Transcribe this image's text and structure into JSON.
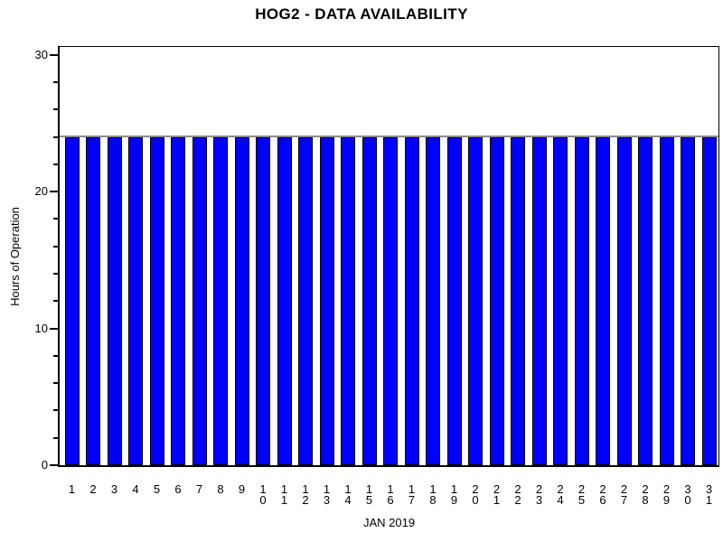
{
  "chart_data": {
    "type": "bar",
    "title": "HOG2 - DATA AVAILABILITY",
    "xlabel": "JAN 2019",
    "ylabel": "Hours of Operation",
    "categories": [
      "1",
      "2",
      "3",
      "4",
      "5",
      "6",
      "7",
      "8",
      "9",
      "10",
      "11",
      "12",
      "13",
      "14",
      "15",
      "16",
      "17",
      "18",
      "19",
      "20",
      "21",
      "22",
      "23",
      "24",
      "25",
      "26",
      "27",
      "28",
      "29",
      "30",
      "31"
    ],
    "values": [
      24,
      24,
      24,
      24,
      24,
      24,
      24,
      24,
      24,
      24,
      24,
      24,
      24,
      24,
      24,
      24,
      24,
      24,
      24,
      24,
      24,
      24,
      24,
      24,
      24,
      24,
      24,
      24,
      24,
      24,
      24
    ],
    "ylim": [
      0,
      30
    ],
    "yticks_major": [
      0,
      10,
      20,
      30
    ],
    "ytick_minor_step": 2,
    "grid": "off",
    "legend": "none",
    "reference_line": {
      "value": 24,
      "color": "#8c8c8c"
    },
    "bar_color": "#0000ff",
    "bar_border_color": "#000000",
    "frame_color": "#000000",
    "background_color": "#ffffff"
  }
}
